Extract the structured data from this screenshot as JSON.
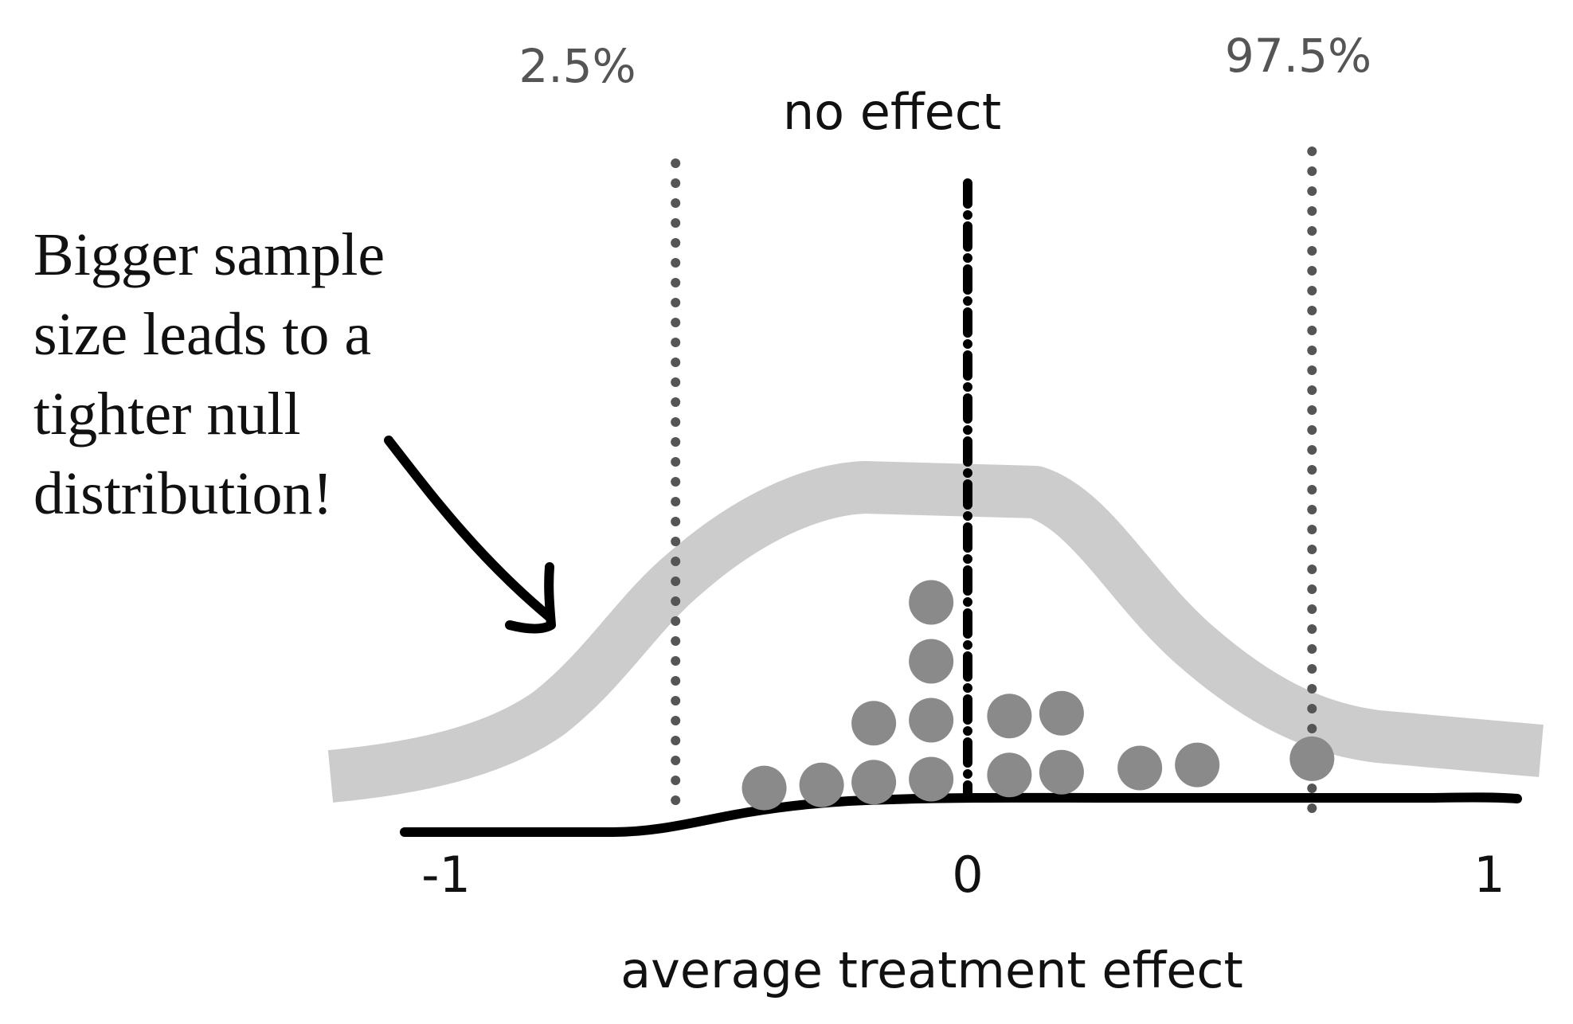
{
  "annotation": {
    "lines": [
      "Bigger sample",
      "size leads to a",
      "tighter null",
      "distribution!"
    ]
  },
  "labels": {
    "lower_percentile": "2.5%",
    "upper_percentile": "97.5%",
    "no_effect": "no effect",
    "x_axis_title": "average treatment effect"
  },
  "axis": {
    "ticks": [
      {
        "value": -1,
        "label": "-1"
      },
      {
        "value": 0,
        "label": "0"
      },
      {
        "value": 1,
        "label": "1"
      }
    ]
  },
  "chart_data": {
    "type": "scatter",
    "xlabel": "average treatment effect",
    "ylabel": "",
    "xlim": [
      -1,
      1
    ],
    "reference_lines": [
      {
        "x": -0.56,
        "label": "2.5%",
        "style": "dotted"
      },
      {
        "x": 0.0,
        "label": "no effect",
        "style": "dash-dot"
      },
      {
        "x": 0.66,
        "label": "97.5%",
        "style": "dotted"
      }
    ],
    "dot_stacks": [
      {
        "x": -0.39,
        "count": 1
      },
      {
        "x": -0.28,
        "count": 1
      },
      {
        "x": -0.18,
        "count": 2
      },
      {
        "x": -0.07,
        "count": 4
      },
      {
        "x": 0.08,
        "count": 2
      },
      {
        "x": 0.18,
        "count": 2
      },
      {
        "x": 0.33,
        "count": 1
      },
      {
        "x": 0.44,
        "count": 1
      },
      {
        "x": 0.66,
        "count": 1
      }
    ],
    "colors": {
      "dots": "#8a8a8a",
      "wide_null_curve": "#cccccc",
      "narrow_null_curve": "#000000",
      "percentile_lines": "#555555",
      "no_effect_line": "#000000",
      "text": "#111111",
      "percentile_text": "#555555"
    }
  }
}
